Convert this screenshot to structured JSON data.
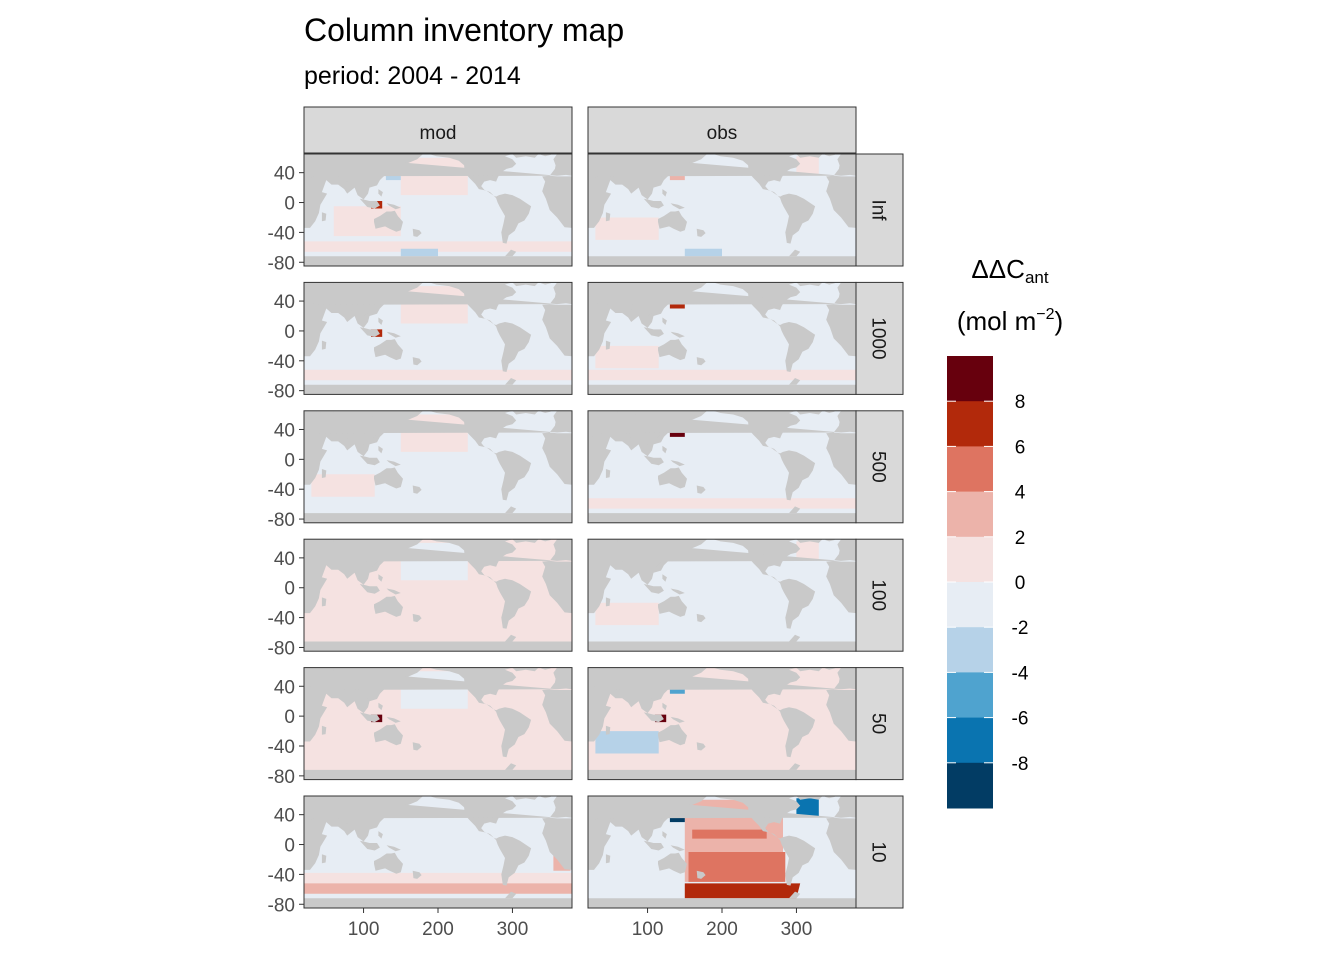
{
  "title": "Column inventory map",
  "subtitle": "period: 2004 - 2014",
  "chart_data": {
    "type": "heatmap",
    "facet_columns": [
      "mod",
      "obs"
    ],
    "facet_rows": [
      "Inf",
      "1000",
      "500",
      "100",
      "50",
      "10"
    ],
    "x_ticks": [
      "100",
      "200",
      "300"
    ],
    "x_tick_values": [
      100,
      200,
      300
    ],
    "xlim": [
      20,
      380
    ],
    "y_ticks": [
      "40",
      "0",
      "-40",
      "-80"
    ],
    "y_tick_values": [
      40,
      0,
      -40,
      -80
    ],
    "ylim": [
      -85,
      65
    ],
    "legend": {
      "title_main": "ΔΔC",
      "title_sub": "ant",
      "unit_main": "(mol m",
      "unit_sup": "−2",
      "unit_close": ")",
      "position": "right",
      "bins": [
        {
          "range": [
            8,
            10
          ],
          "color": "#67000d"
        },
        {
          "range": [
            6,
            8
          ],
          "color": "#b2290b"
        },
        {
          "range": [
            4,
            6
          ],
          "color": "#de7461"
        },
        {
          "range": [
            2,
            4
          ],
          "color": "#ecb3aa"
        },
        {
          "range": [
            0,
            2
          ],
          "color": "#f5e2e1"
        },
        {
          "range": [
            -2,
            0
          ],
          "color": "#e7edf4"
        },
        {
          "range": [
            -4,
            -2
          ],
          "color": "#b6d2e8"
        },
        {
          "range": [
            -6,
            -4
          ],
          "color": "#4fa3cf"
        },
        {
          "range": [
            -8,
            -6
          ],
          "color": "#0a74b0"
        },
        {
          "range": [
            -10,
            -8
          ],
          "color": "#023c64"
        }
      ],
      "labels": [
        "8",
        "6",
        "4",
        "2",
        "0",
        "-2",
        "-4",
        "-6",
        "-8"
      ]
    },
    "panels": [
      {
        "col": "mod",
        "row": "Inf",
        "background_bin": [
          -2,
          0
        ],
        "features": [
          {
            "region": "Pacific North",
            "bin": [
              0,
              2
            ]
          },
          {
            "region": "Indian / Australia",
            "bin": [
              0,
              2
            ]
          },
          {
            "region": "Southern Ocean edge",
            "bin": [
              0,
              2
            ]
          },
          {
            "region": "Ross Sea",
            "bin": [
              -4,
              -2
            ]
          },
          {
            "region": "Kuroshio",
            "bin": [
              -4,
              -2
            ]
          },
          {
            "region": "Indonesia",
            "bin": [
              6,
              8
            ]
          }
        ]
      },
      {
        "col": "obs",
        "row": "Inf",
        "background_bin": [
          -2,
          0
        ],
        "features": [
          {
            "region": "Indian Ocean",
            "bin": [
              0,
              2
            ]
          },
          {
            "region": "North Atlantic",
            "bin": [
              0,
              2
            ]
          },
          {
            "region": "Kuroshio",
            "bin": [
              2,
              4
            ]
          },
          {
            "region": "Ross Sea",
            "bin": [
              -4,
              -2
            ]
          }
        ]
      },
      {
        "col": "mod",
        "row": "1000",
        "background_bin": [
          -2,
          0
        ],
        "features": [
          {
            "region": "Pacific North",
            "bin": [
              0,
              2
            ]
          },
          {
            "region": "Southern Ocean edge",
            "bin": [
              0,
              2
            ]
          },
          {
            "region": "Indonesia",
            "bin": [
              6,
              8
            ]
          }
        ]
      },
      {
        "col": "obs",
        "row": "1000",
        "background_bin": [
          -2,
          0
        ],
        "features": [
          {
            "region": "Indian Ocean",
            "bin": [
              0,
              2
            ]
          },
          {
            "region": "Kuroshio",
            "bin": [
              6,
              8
            ]
          },
          {
            "region": "Southern Ocean edge",
            "bin": [
              0,
              2
            ]
          }
        ]
      },
      {
        "col": "mod",
        "row": "500",
        "background_bin": [
          -2,
          0
        ],
        "features": [
          {
            "region": "Pacific North",
            "bin": [
              0,
              2
            ]
          },
          {
            "region": "Indian Ocean",
            "bin": [
              0,
              2
            ]
          }
        ]
      },
      {
        "col": "obs",
        "row": "500",
        "background_bin": [
          -2,
          0
        ],
        "features": [
          {
            "region": "Kuroshio",
            "bin": [
              8,
              10
            ]
          },
          {
            "region": "Southern Ocean edge",
            "bin": [
              0,
              2
            ]
          }
        ]
      },
      {
        "col": "mod",
        "row": "100",
        "background_bin": [
          0,
          2
        ],
        "features": [
          {
            "region": "Pacific North",
            "bin": [
              -2,
              0
            ]
          },
          {
            "region": "Southern Ocean edge",
            "bin": [
              0,
              2
            ]
          }
        ]
      },
      {
        "col": "obs",
        "row": "100",
        "background_bin": [
          -2,
          0
        ],
        "features": [
          {
            "region": "Indian Ocean",
            "bin": [
              0,
              2
            ]
          },
          {
            "region": "North Atlantic",
            "bin": [
              0,
              2
            ]
          }
        ]
      },
      {
        "col": "mod",
        "row": "50",
        "background_bin": [
          0,
          2
        ],
        "features": [
          {
            "region": "Pacific North",
            "bin": [
              -2,
              0
            ]
          },
          {
            "region": "Indonesia",
            "bin": [
              8,
              10
            ]
          }
        ]
      },
      {
        "col": "obs",
        "row": "50",
        "background_bin": [
          0,
          2
        ],
        "features": [
          {
            "region": "Kuroshio",
            "bin": [
              -6,
              -4
            ]
          },
          {
            "region": "Indian Ocean",
            "bin": [
              -4,
              -2
            ]
          },
          {
            "region": "Indonesia",
            "bin": [
              8,
              10
            ]
          }
        ]
      },
      {
        "col": "mod",
        "row": "10",
        "background_bin": [
          -2,
          0
        ],
        "features": [
          {
            "region": "Southern Ocean",
            "bin": [
              0,
              2
            ]
          },
          {
            "region": "South Atlantic east",
            "bin": [
              2,
              4
            ]
          },
          {
            "region": "Southern Ocean edge",
            "bin": [
              2,
              4
            ]
          }
        ]
      },
      {
        "col": "obs",
        "row": "10",
        "background_bin": [
          -2,
          0
        ],
        "features": [
          {
            "region": "Pacific",
            "bin": [
              2,
              4
            ]
          },
          {
            "region": "Pacific bands",
            "bin": [
              4,
              6
            ]
          },
          {
            "region": "South Pacific",
            "bin": [
              4,
              6
            ]
          },
          {
            "region": "Pacific sector Southern Ocean",
            "bin": [
              6,
              8
            ]
          },
          {
            "region": "Kuroshio",
            "bin": [
              -10,
              -8
            ]
          },
          {
            "region": "North Atlantic",
            "bin": [
              -8,
              -6
            ]
          }
        ]
      }
    ]
  }
}
